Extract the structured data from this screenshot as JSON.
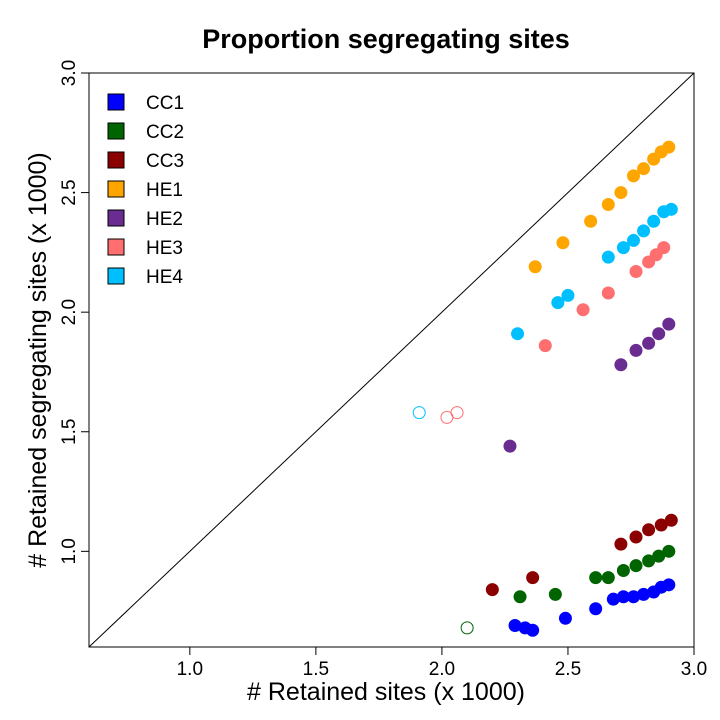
{
  "chart_data": {
    "type": "scatter",
    "title": "Proportion segregating sites",
    "xlabel": "# Retained sites (x 1000)",
    "ylabel": "# Retained segregating sites (x 1000)",
    "xlim": [
      0.6,
      3.0
    ],
    "ylim": [
      0.6,
      3.0
    ],
    "x_ticks": [
      "1.0",
      "1.5",
      "2.0",
      "2.5",
      "3.0"
    ],
    "y_ticks": [
      "1.0",
      "1.5",
      "2.0",
      "2.5",
      "3.0"
    ],
    "reference_line": "y = x",
    "grid": false,
    "legend_position": "top-left",
    "series": [
      {
        "name": "CC1",
        "color": "#0000ff",
        "points": [
          [
            2.29,
            0.69
          ],
          [
            2.33,
            0.68
          ],
          [
            2.36,
            0.67
          ],
          [
            2.49,
            0.72
          ],
          [
            2.61,
            0.76
          ],
          [
            2.68,
            0.8
          ],
          [
            2.72,
            0.81
          ],
          [
            2.76,
            0.81
          ],
          [
            2.8,
            0.82
          ],
          [
            2.84,
            0.83
          ],
          [
            2.87,
            0.85
          ],
          [
            2.9,
            0.86
          ]
        ]
      },
      {
        "name": "CC2",
        "color": "#006400",
        "points": [
          [
            2.1,
            0.68,
            "open"
          ],
          [
            2.31,
            0.81
          ],
          [
            2.45,
            0.82
          ],
          [
            2.61,
            0.89
          ],
          [
            2.66,
            0.89
          ],
          [
            2.72,
            0.92
          ],
          [
            2.77,
            0.94
          ],
          [
            2.82,
            0.96
          ],
          [
            2.86,
            0.98
          ],
          [
            2.9,
            1.0
          ]
        ]
      },
      {
        "name": "CC3",
        "color": "#8b0000",
        "points": [
          [
            2.2,
            0.84
          ],
          [
            2.36,
            0.89
          ],
          [
            2.71,
            1.03
          ],
          [
            2.77,
            1.06
          ],
          [
            2.82,
            1.09
          ],
          [
            2.87,
            1.11
          ],
          [
            2.91,
            1.13
          ]
        ]
      },
      {
        "name": "HE1",
        "color": "#ffa500",
        "points": [
          [
            2.37,
            2.19
          ],
          [
            2.48,
            2.29
          ],
          [
            2.59,
            2.38
          ],
          [
            2.66,
            2.45
          ],
          [
            2.71,
            2.5
          ],
          [
            2.76,
            2.57
          ],
          [
            2.8,
            2.6
          ],
          [
            2.84,
            2.64
          ],
          [
            2.87,
            2.67
          ],
          [
            2.9,
            2.69
          ]
        ]
      },
      {
        "name": "HE2",
        "color": "#6a2c91",
        "points": [
          [
            2.27,
            1.44
          ],
          [
            2.71,
            1.78
          ],
          [
            2.77,
            1.84
          ],
          [
            2.82,
            1.87
          ],
          [
            2.86,
            1.91
          ],
          [
            2.9,
            1.95
          ]
        ]
      },
      {
        "name": "HE3",
        "color": "#ff6f6f",
        "points": [
          [
            2.02,
            1.56,
            "open"
          ],
          [
            2.06,
            1.58,
            "open"
          ],
          [
            2.41,
            1.86
          ],
          [
            2.56,
            2.01
          ],
          [
            2.66,
            2.08
          ],
          [
            2.77,
            2.17
          ],
          [
            2.82,
            2.21
          ],
          [
            2.85,
            2.24
          ],
          [
            2.88,
            2.27
          ]
        ]
      },
      {
        "name": "HE4",
        "color": "#00bfff",
        "points": [
          [
            1.91,
            1.58,
            "open"
          ],
          [
            2.3,
            1.91
          ],
          [
            2.46,
            2.04
          ],
          [
            2.5,
            2.07
          ],
          [
            2.66,
            2.23
          ],
          [
            2.72,
            2.27
          ],
          [
            2.76,
            2.3
          ],
          [
            2.8,
            2.34
          ],
          [
            2.84,
            2.38
          ],
          [
            2.88,
            2.42
          ],
          [
            2.91,
            2.43
          ]
        ]
      }
    ]
  }
}
